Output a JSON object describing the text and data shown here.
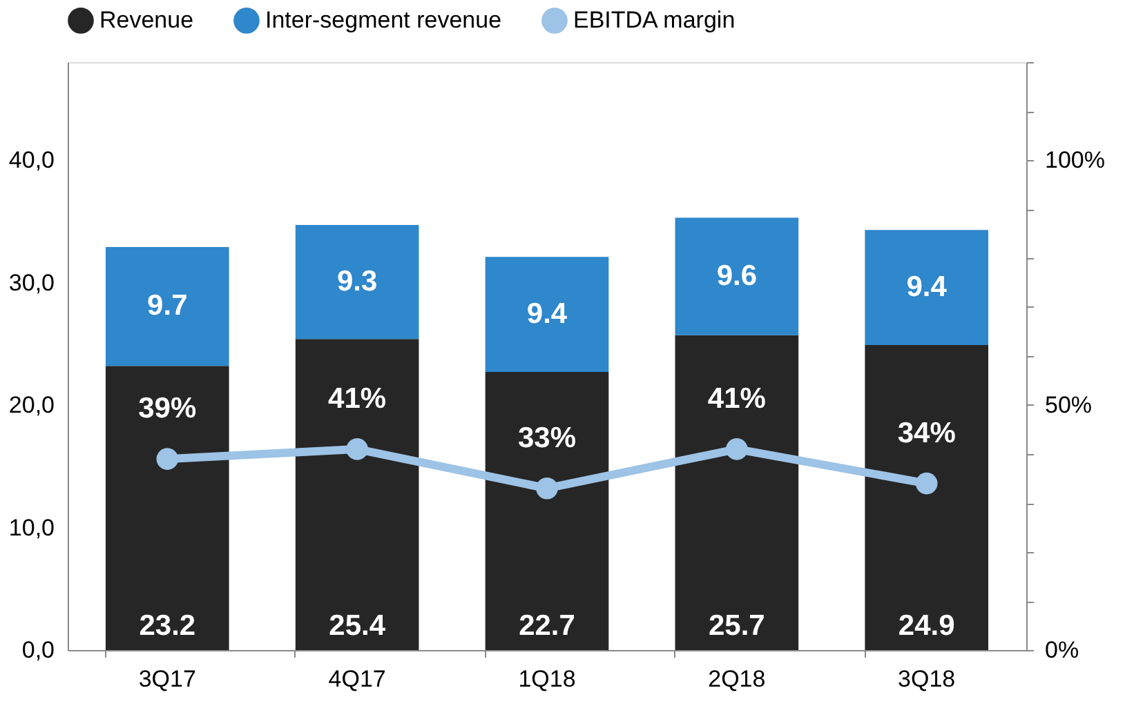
{
  "chart_data": {
    "type": "bar",
    "stacked": true,
    "categories": [
      "3Q17",
      "4Q17",
      "1Q18",
      "2Q18",
      "3Q18"
    ],
    "series": [
      {
        "name": "Revenue",
        "color": "#262626",
        "values": [
          23.2,
          25.4,
          22.7,
          25.7,
          24.9
        ]
      },
      {
        "name": "Inter-segment revenue",
        "color": "#2f87cc",
        "values": [
          9.7,
          9.3,
          9.4,
          9.6,
          9.4
        ]
      },
      {
        "name": "EBITDA margin",
        "type": "line",
        "axis": "y2",
        "color": "#9dc3e6",
        "marker": "circle",
        "values": [
          39,
          41,
          33,
          41,
          34
        ],
        "value_labels": [
          "39%",
          "41%",
          "33%",
          "41%",
          "34%"
        ]
      }
    ],
    "ylim": [
      0,
      48
    ],
    "yticks": [
      {
        "value": 0,
        "label": "0,0"
      },
      {
        "value": 10,
        "label": "10,0"
      },
      {
        "value": 20,
        "label": "20,0"
      },
      {
        "value": 30,
        "label": "30,0"
      },
      {
        "value": 40,
        "label": "40,0"
      }
    ],
    "y2lim": [
      0,
      120
    ],
    "y2ticks": [
      {
        "value": 0,
        "label": "0%"
      },
      {
        "value": 10,
        "label": null
      },
      {
        "value": 20,
        "label": null
      },
      {
        "value": 30,
        "label": null
      },
      {
        "value": 40,
        "label": null
      },
      {
        "value": 50,
        "label": "50%"
      },
      {
        "value": 60,
        "label": null
      },
      {
        "value": 70,
        "label": null
      },
      {
        "value": 80,
        "label": null
      },
      {
        "value": 90,
        "label": null
      },
      {
        "value": 100,
        "label": "100%"
      },
      {
        "value": 110,
        "label": null
      },
      {
        "value": 120,
        "label": null
      }
    ],
    "data_labels": true,
    "legend": "top",
    "grid": false
  }
}
